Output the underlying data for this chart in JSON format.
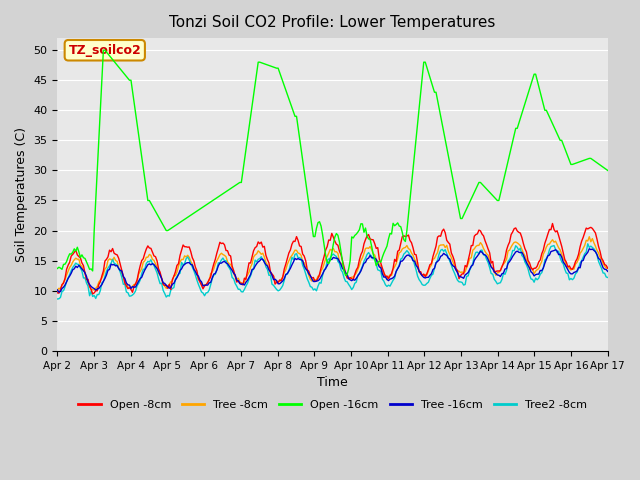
{
  "title": "Tonzi Soil CO2 Profile: Lower Temperatures",
  "xlabel": "Time",
  "ylabel": "Soil Temperatures (C)",
  "ylim": [
    0,
    52
  ],
  "yticks": [
    0,
    5,
    10,
    15,
    20,
    25,
    30,
    35,
    40,
    45,
    50
  ],
  "xtick_labels": [
    "Apr 2",
    "Apr 3",
    "Apr 4",
    "Apr 5",
    "Apr 6",
    "Apr 7",
    "Apr 8",
    "Apr 9",
    "Apr 10",
    "Apr 11",
    "Apr 12",
    "Apr 13",
    "Apr 14",
    "Apr 15",
    "Apr 16",
    "Apr 17"
  ],
  "legend_entries": [
    "Open -8cm",
    "Tree -8cm",
    "Open -16cm",
    "Tree -16cm",
    "Tree2 -8cm"
  ],
  "colors": {
    "open8": "#ff0000",
    "tree8": "#ffa500",
    "open16": "#00ff00",
    "tree16": "#0000cc",
    "tree28": "#00cccc"
  },
  "annotation_text": "TZ_soilco2",
  "annotation_bg": "#ffffcc",
  "annotation_fg": "#cc0000",
  "bg_color": "#d3d3d3",
  "plot_bg": "#e8e8e8",
  "n_points": 360
}
